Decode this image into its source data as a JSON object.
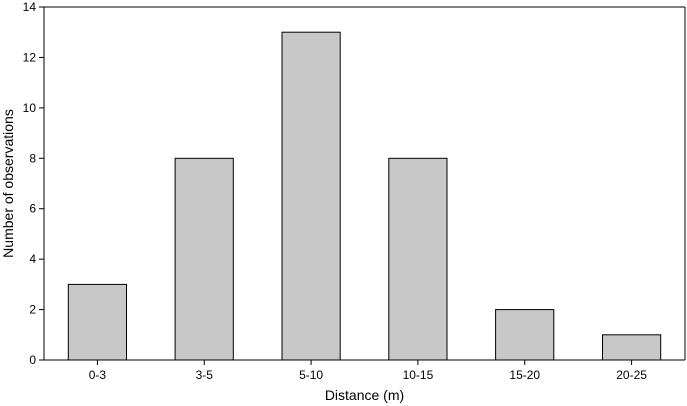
{
  "chart_data": {
    "type": "bar",
    "title": "",
    "xlabel": "Distance (m)",
    "ylabel": "Number of observations",
    "categories": [
      "0-3",
      "3-5",
      "5-10",
      "10-15",
      "15-20",
      "20-25"
    ],
    "values": [
      3,
      8,
      13,
      8,
      2,
      1
    ],
    "ylim": [
      0,
      14
    ],
    "yticks": [
      0,
      2,
      4,
      6,
      8,
      10,
      12,
      14
    ],
    "grid": false,
    "legend": "none",
    "colors": {
      "bar_fill": "#c8c8c8",
      "bar_stroke": "#000000",
      "axis": "#000000"
    }
  }
}
